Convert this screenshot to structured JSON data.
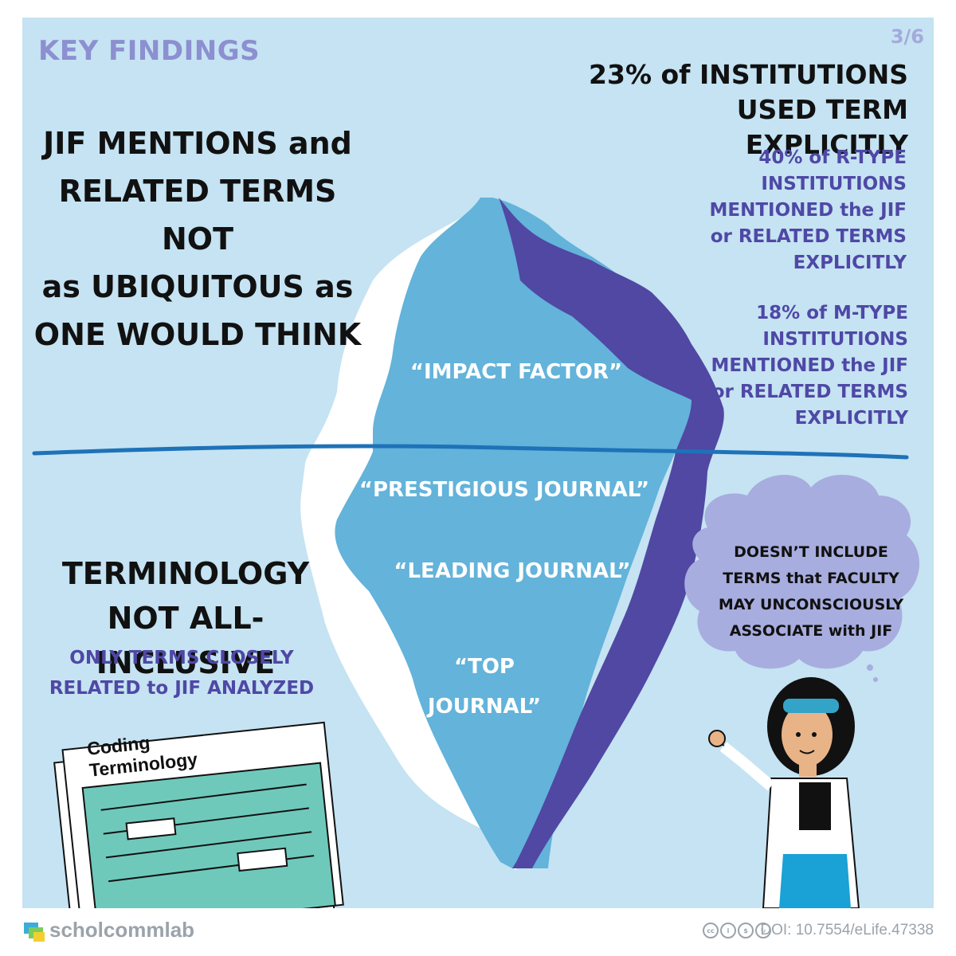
{
  "header": {
    "section_label": "KEY FINDINGS",
    "page_number": "3/6"
  },
  "headline_left": {
    "lines": [
      "JIF MENTIONS and",
      "RELATED TERMS NOT",
      "as UBIQUITOUS as",
      "ONE WOULD THINK"
    ]
  },
  "stats": {
    "main": [
      "23% of INSTITUTIONS",
      "USED TERM EXPLICITLY"
    ],
    "r_type": [
      "40% of R-TYPE",
      "INSTITUTIONS",
      "MENTIONED the JIF",
      "or RELATED TERMS",
      "EXPLICITLY"
    ],
    "m_type": [
      "18% of M-TYPE",
      "INSTITUTIONS",
      "MENTIONED the JIF",
      "or RELATED TERMS",
      "EXPLICITLY"
    ]
  },
  "iceberg": {
    "above_water": "“IMPACT FACTOR”",
    "below_water": [
      "“PRESTIGIOUS JOURNAL”",
      "“LEADING JOURNAL”"
    ],
    "top_journal": [
      "“TOP",
      "JOURNAL”"
    ]
  },
  "terminology": {
    "title": [
      "TERMINOLOGY",
      "NOT ALL-INCLUSIVE"
    ],
    "subtitle": [
      "ONLY TERMS CLOSELY",
      "RELATED to JIF ANALYZED"
    ],
    "document_title": "Coding Terminology"
  },
  "thought_bubble": {
    "lines": [
      "DOESN’T INCLUDE",
      "TERMS that FACULTY",
      "MAY UNCONSCIOUSLY",
      "ASSOCIATE with JIF"
    ]
  },
  "footer": {
    "brand": "scholcommlab",
    "doi": "DOI: 10.7554/eLife.47338",
    "license_icons": [
      "cc-icon",
      "by-icon",
      "nc-icon",
      "sa-icon"
    ]
  },
  "colors": {
    "background": "#c5e3f2",
    "iceberg_light": "#63b3da",
    "iceberg_dark": "#5048a3",
    "water_line": "#1e72b8",
    "accent_purple": "#4f48a6",
    "teal": "#6fc9bb"
  }
}
